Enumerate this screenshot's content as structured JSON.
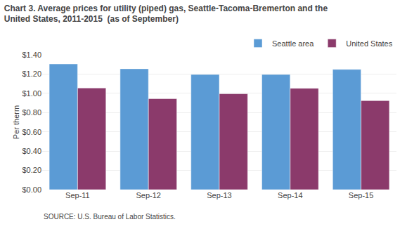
{
  "chart_data": {
    "type": "bar",
    "title": "Chart 3. Average prices for utility (piped) gas, Seattle-Tacoma-Bremerton and the",
    "subtitle": "United States, 2011-2015  (as of September)",
    "ylabel": "Per therm",
    "annotations": [
      "SOURCE: U.S. Bureau of Labor Statistics."
    ],
    "categories": [
      "Sep-11",
      "Sep-12",
      "Sep-13",
      "Sep-14",
      "Sep-15"
    ],
    "series": [
      {
        "name": "Seattle area",
        "color": "#5B9BD5",
        "values": [
          1.305,
          1.255,
          1.195,
          1.195,
          1.248
        ]
      },
      {
        "name": "United States",
        "color": "#8B3A6B",
        "values": [
          1.055,
          0.945,
          0.995,
          1.052,
          0.924
        ]
      }
    ],
    "ylim": [
      0,
      1.4
    ],
    "yticks": [
      {
        "value": 0.0,
        "label": "$0.00"
      },
      {
        "value": 0.2,
        "label": "$0.20"
      },
      {
        "value": 0.4,
        "label": "$0.40"
      },
      {
        "value": 0.6,
        "label": "$0.60"
      },
      {
        "value": 0.8,
        "label": "$0.80"
      },
      {
        "value": 1.0,
        "label": "$1.00"
      },
      {
        "value": 1.2,
        "label": "$1.20"
      },
      {
        "value": 1.4,
        "label": "$1.40"
      }
    ],
    "grid": true,
    "legend": "top"
  }
}
